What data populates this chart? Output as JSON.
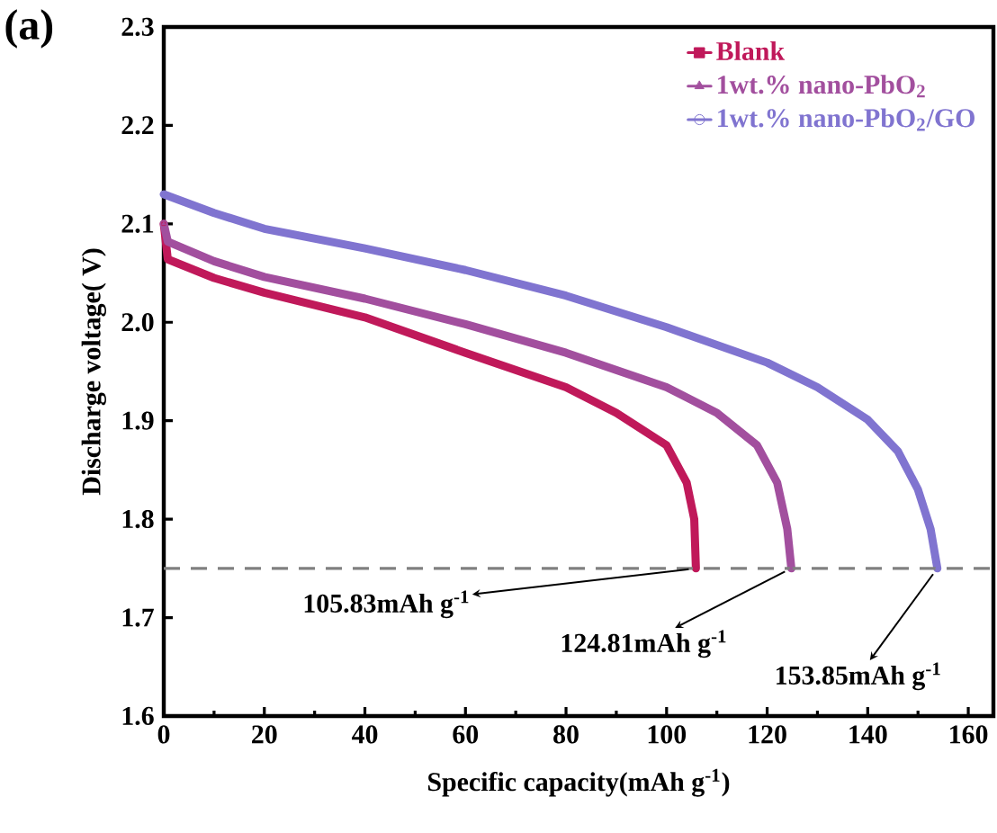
{
  "chart_data": {
    "type": "line",
    "title": "(a)",
    "xlabel": "Specific capacity(mAh g$^{-1}$)",
    "ylabel": "Discharge voltage( V)",
    "xlim": [
      0,
      165
    ],
    "xticks": [
      0,
      20,
      40,
      60,
      80,
      100,
      120,
      140,
      160
    ],
    "ylim": [
      1.6,
      2.3
    ],
    "yticks": [
      1.6,
      1.7,
      1.8,
      1.9,
      {
        "value": 2.0,
        "label": "2.0"
      },
      2.1,
      2.2,
      2.3
    ],
    "legend": "top right",
    "line_style": "solid",
    "series": [
      {
        "name": "Blank",
        "color": "#c0195a",
        "marker": "square",
        "x": [
          0,
          0.8,
          10,
          20,
          40,
          60,
          80,
          90,
          100,
          104,
          105.5,
          105.83
        ],
        "values": [
          2.1,
          2.064,
          2.045,
          2.03,
          2.005,
          1.969,
          1.934,
          1.908,
          1.875,
          1.837,
          1.8,
          1.75
        ]
      },
      {
        "name": "1wt.% nano-PbO$_{2}$",
        "color": "#a24f9e",
        "marker": "triangle",
        "x": [
          0,
          0.8,
          10,
          20,
          40,
          60,
          80,
          100,
          110,
          118,
          122,
          124,
          124.81
        ],
        "values": [
          2.1,
          2.082,
          2.062,
          2.046,
          2.024,
          1.998,
          1.969,
          1.934,
          1.908,
          1.875,
          1.837,
          1.79,
          1.75
        ]
      },
      {
        "name": "1wt.% nano-PbO$_{2}$/GO",
        "color": "#8074d0",
        "marker": "circle",
        "x": [
          0,
          10,
          20,
          40,
          60,
          80,
          100,
          120,
          130,
          140,
          146,
          150,
          152.5,
          153.85
        ],
        "values": [
          2.13,
          2.111,
          2.095,
          2.075,
          2.053,
          2.027,
          1.995,
          1.959,
          1.934,
          1.901,
          1.869,
          1.83,
          1.79,
          1.75
        ]
      }
    ],
    "ref_lines": [
      {
        "axis": "y",
        "value": 1.75,
        "color": "#808080",
        "line_style": "dashed"
      }
    ],
    "annotations": [
      {
        "text": "105.83mAh g$^{-1}$",
        "x": 105.83,
        "y": 1.75
      },
      {
        "text": "124.81mAh g$^{-1}$",
        "x": 124.81,
        "y": 1.75
      },
      {
        "text": "153.85mAh g$^{-1}$",
        "x": 153.85,
        "y": 1.75
      }
    ]
  }
}
